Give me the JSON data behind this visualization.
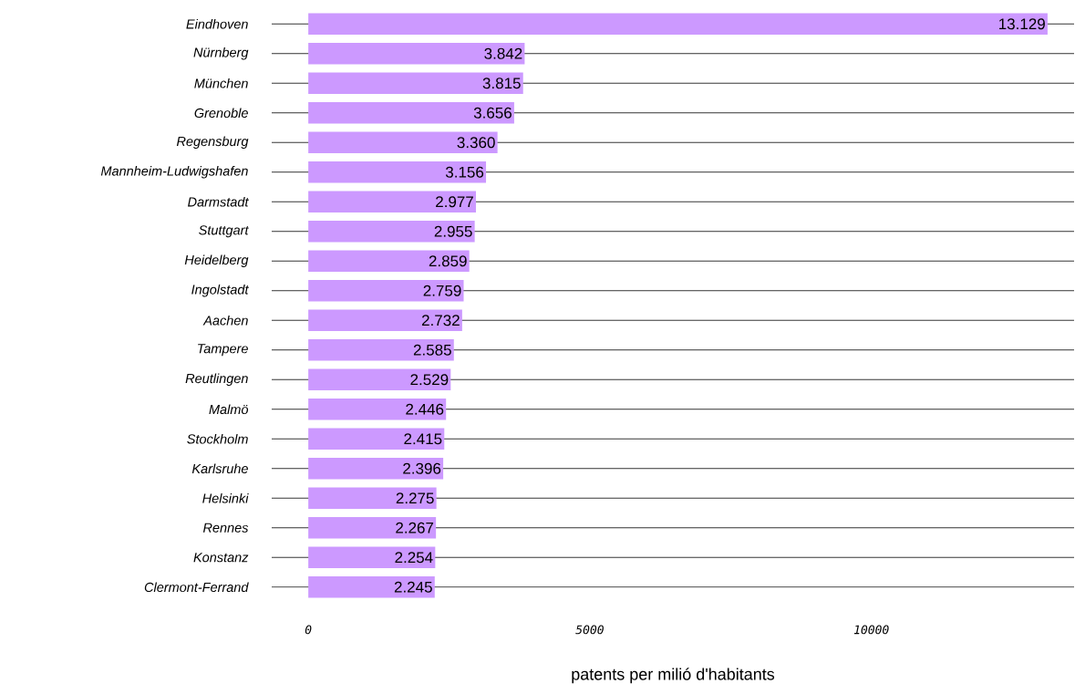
{
  "chart_data": {
    "type": "bar",
    "orientation": "horizontal",
    "xlabel": "patents per milió d'habitants",
    "categories": [
      "Eindhoven",
      "Nürnberg",
      "München",
      "Grenoble",
      "Regensburg",
      "Mannheim-Ludwigshafen",
      "Darmstadt",
      "Stuttgart",
      "Heidelberg",
      "Ingolstadt",
      "Aachen",
      "Tampere",
      "Reutlingen",
      "Malmö",
      "Stockholm",
      "Karlsruhe",
      "Helsinki",
      "Rennes",
      "Konstanz",
      "Clermont-Ferrand"
    ],
    "values": [
      13129,
      3842,
      3815,
      3656,
      3360,
      3156,
      2977,
      2955,
      2859,
      2759,
      2732,
      2585,
      2529,
      2446,
      2415,
      2396,
      2275,
      2267,
      2254,
      2245
    ],
    "value_labels": [
      "13.129",
      "3.842",
      "3.815",
      "3.656",
      "3.360",
      "3.156",
      "2.977",
      "2.955",
      "2.859",
      "2.759",
      "2.732",
      "2.585",
      "2.529",
      "2.446",
      "2.415",
      "2.396",
      "2.275",
      "2.267",
      "2.254",
      "2.245"
    ],
    "color": "#cc99ff",
    "xlim": [
      -650,
      13600
    ],
    "xticks": [
      0,
      5000,
      10000
    ],
    "grid": "y"
  }
}
